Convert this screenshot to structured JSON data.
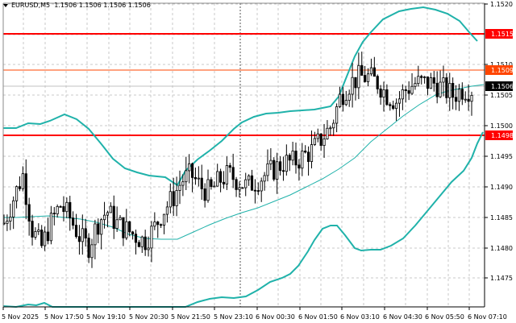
{
  "header": {
    "symbol": "EURUSD,M5",
    "ohlc": "1.1506 1.1506 1.1506 1.1506",
    "dropdown_icon": "triangle-down-icon"
  },
  "colors": {
    "background": "#ffffff",
    "grid": "#c8c8c8",
    "candle": "#000000",
    "bollinger": "#20b2aa",
    "moving_average": "#20b2aa",
    "support_resistance": "#ff0000",
    "level_1509": "#ff4500",
    "current_price_tag": "#000000"
  },
  "chart_data": {
    "type": "candlestick",
    "title": "EURUSD,M5",
    "timeframe": "M5",
    "xlabel": "",
    "ylabel": "",
    "x_tick_labels": [
      "5 Nov 2025",
      "5 Nov 17:50",
      "5 Nov 19:10",
      "5 Nov 20:30",
      "5 Nov 21:50",
      "5 Nov 23:10",
      "6 Nov 00:30",
      "6 Nov 01:50",
      "6 Nov 03:10",
      "6 Nov 04:30",
      "6 Nov 05:50",
      "6 Nov 07:10"
    ],
    "y_tick_labels": [
      "1.1520",
      "1.1515",
      "1.1510",
      "1.1505",
      "1.1500",
      "1.1495",
      "1.1490",
      "1.1485",
      "1.1480",
      "1.1475"
    ],
    "ylim": [
      1.147,
      1.1521
    ],
    "grid": true,
    "horizontal_levels": [
      {
        "price": 1.1515,
        "label": "1.1515",
        "color": "#ff0000",
        "width": 2
      },
      {
        "price": 1.1509,
        "label": "1.1509",
        "color": "#ff4500",
        "width": 1
      },
      {
        "price": 1.1498,
        "label": "1.1498",
        "color": "#ff0000",
        "width": 2
      }
    ],
    "current_price": {
      "price": 1.1506,
      "label": "1.1506"
    },
    "indicators": [
      "Bollinger Bands (upper, middle, lower)",
      "Moving Average"
    ],
    "approx_close_series": [
      1.1484,
      1.1488,
      1.1492,
      1.1483,
      1.148,
      1.1484,
      1.1487,
      1.1485,
      1.1482,
      1.148,
      1.1484,
      1.1486,
      1.1484,
      1.1483,
      1.1482,
      1.1481,
      1.1483,
      1.1486,
      1.1488,
      1.1491,
      1.1492,
      1.149,
      1.1489,
      1.1491,
      1.1492,
      1.1491,
      1.149,
      1.1491,
      1.1492,
      1.1493,
      1.1494,
      1.1494,
      1.1495,
      1.1496,
      1.1498,
      1.15,
      1.1505,
      1.1507,
      1.1508,
      1.1508,
      1.1507,
      1.1505,
      1.1504,
      1.1506,
      1.1507,
      1.1507,
      1.1507,
      1.1506,
      1.1505,
      1.1506,
      1.1506
    ],
    "bollinger_upper_approx": [
      1.15,
      1.1501,
      1.1501,
      1.1502,
      1.15,
      1.1497,
      1.1495,
      1.1494,
      1.1492,
      1.149,
      1.149,
      1.1495,
      1.1499,
      1.1502,
      1.1503,
      1.1503,
      1.1504,
      1.1507,
      1.1512,
      1.1517,
      1.1518,
      1.1519,
      1.1519,
      1.1517,
      1.1514
    ],
    "bollinger_lower_approx": [
      1.1471,
      1.1472,
      1.147,
      1.1469,
      1.1471,
      1.1472,
      1.1472,
      1.1474,
      1.1476,
      1.1478,
      1.1482,
      1.1485,
      1.1481,
      1.148,
      1.1481,
      1.1483,
      1.1486,
      1.149,
      1.1494,
      1.1498
    ]
  }
}
